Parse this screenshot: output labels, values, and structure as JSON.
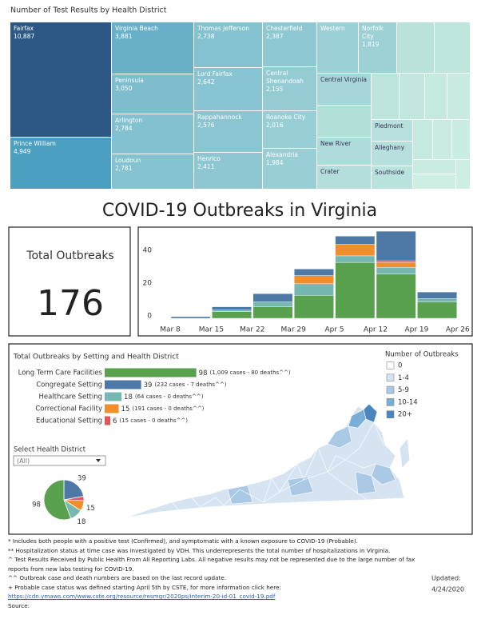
{
  "header": {
    "title": "COVID-19 Outbreaks in Virginia"
  },
  "kpi": {
    "label": "Total Outbreaks",
    "value": 176
  },
  "chart_data": [
    {
      "type": "treemap",
      "title": "Number of Test Results by Health District",
      "categories": [
        "Fairfax",
        "Prince William",
        "Virginia Beach",
        "Peninsula",
        "Arlington",
        "Loudoun",
        "Thomas Jefferson",
        "Lord Fairfax",
        "Rappahannock",
        "Henrico",
        "Chesterfield",
        "Central Shenandoah",
        "Roanoke City",
        "Alexandria",
        "Western",
        "Norfolk City",
        "Central Virginia",
        "New River",
        "Crater",
        "Piedmont",
        "Alleghany",
        "Southside"
      ],
      "values": [
        10887,
        4949,
        3881,
        3050,
        2784,
        2781,
        2738,
        2642,
        2576,
        2411,
        2387,
        2155,
        2016,
        1984,
        1900,
        1819,
        1500,
        1200,
        1000,
        800,
        850,
        700
      ],
      "value_labels": [
        "10,887",
        "4,949",
        "3,881",
        "3,050",
        "2,784",
        "2,781",
        "2,738",
        "2,642",
        "2,576",
        "2,411",
        "2,387",
        "2,155",
        "2,016",
        "1,984",
        null,
        "1,819",
        null,
        null,
        null,
        null,
        null,
        null
      ],
      "color_scale": {
        "domain": [
          0,
          5000,
          11000
        ],
        "colors": [
          "#cdeee3",
          "#4a9ec0",
          "#2c5784"
        ]
      }
    },
    {
      "type": "stacked_bar",
      "categories": [
        "Mar 8",
        "Mar 15",
        "Mar 22",
        "Mar 29",
        "Apr 5",
        "Apr 12",
        "Apr 19",
        "Apr 26"
      ],
      "series": [
        {
          "color": "#59a14f",
          "values": [
            0,
            4,
            7,
            14,
            34,
            27,
            10,
            null
          ]
        },
        {
          "color": "#76b7b2",
          "values": [
            0,
            1,
            3,
            7,
            4,
            4,
            2,
            null
          ]
        },
        {
          "color": "#f28e2b",
          "values": [
            0,
            0,
            0,
            5,
            7,
            3,
            0,
            null
          ]
        },
        {
          "color": "#e15759",
          "values": [
            0,
            0,
            0,
            0,
            0,
            1,
            0,
            null
          ]
        },
        {
          "color": "#4e79a7",
          "values": [
            1,
            2,
            5,
            4,
            5,
            18,
            4,
            null
          ]
        }
      ],
      "ylim": [
        0,
        55
      ],
      "yticks": [
        0,
        20,
        40
      ],
      "grid": false
    },
    {
      "type": "hbar",
      "title": "Total Outbreaks by Setting and Health District",
      "categories": [
        "Long Term Care Facilities",
        "Congregate Setting",
        "Healthcare Setting",
        "Correctional Facility",
        "Educational Setting"
      ],
      "values": [
        98,
        39,
        18,
        15,
        6
      ],
      "annotations": [
        "(1,009 cases - 80 deaths^^)",
        "(232 cases - 7 deaths^^)",
        "(64 cases - 0 deaths^^)",
        "(191 cases - 0 deaths^^)",
        "(15 cases - 0 deaths^^)"
      ],
      "colors": [
        "#59a14f",
        "#4e79a7",
        "#76b7b2",
        "#f28e2b",
        "#e15759"
      ]
    },
    {
      "type": "pie",
      "values": [
        39,
        6,
        15,
        18,
        98
      ],
      "value_labels": [
        "39",
        null,
        "15",
        "18",
        "98"
      ],
      "colors": [
        "#4e79a7",
        "#e15759",
        "#f28e2b",
        "#76b7b2",
        "#59a14f"
      ]
    }
  ],
  "map": {
    "legend_title": "Number of Outbreaks",
    "legend": [
      {
        "label": "0",
        "color": "#ffffff"
      },
      {
        "label": "1-4",
        "color": "#d6e4f1"
      },
      {
        "label": "5-9",
        "color": "#a9c9e4"
      },
      {
        "label": "10-14",
        "color": "#7aaed6"
      },
      {
        "label": "20+",
        "color": "#4a85bd"
      }
    ]
  },
  "filter": {
    "label": "Select Health District",
    "selected": "(All)"
  },
  "footnotes": [
    "* Includes both people with a positive test (Confirmed), and symptomatic with a known exposure to COVID-19 (Probable).",
    "** Hospitalization status at time case was investigated by VDH. This underrepresents the total number of hospitalizations in Virginia.",
    "^ Test Results Received by Public Health From All Reporting Labs.  All negative results may not be represented due to the large number of fax reports from new labs testing for COVID-19.",
    "^^ Outbreak case and death numbers are based on the last record update.",
    "+ Probable case status was defined starting April 5th by CSTE, for more information click here:",
    "https://cdn.ymaws.com/www.cste.org/resource/resmgr/2020ps/interim-20-id-01_covid-19.pdf",
    "Source:"
  ],
  "updated": {
    "label": "Updated:",
    "date": "4/24/2020"
  }
}
